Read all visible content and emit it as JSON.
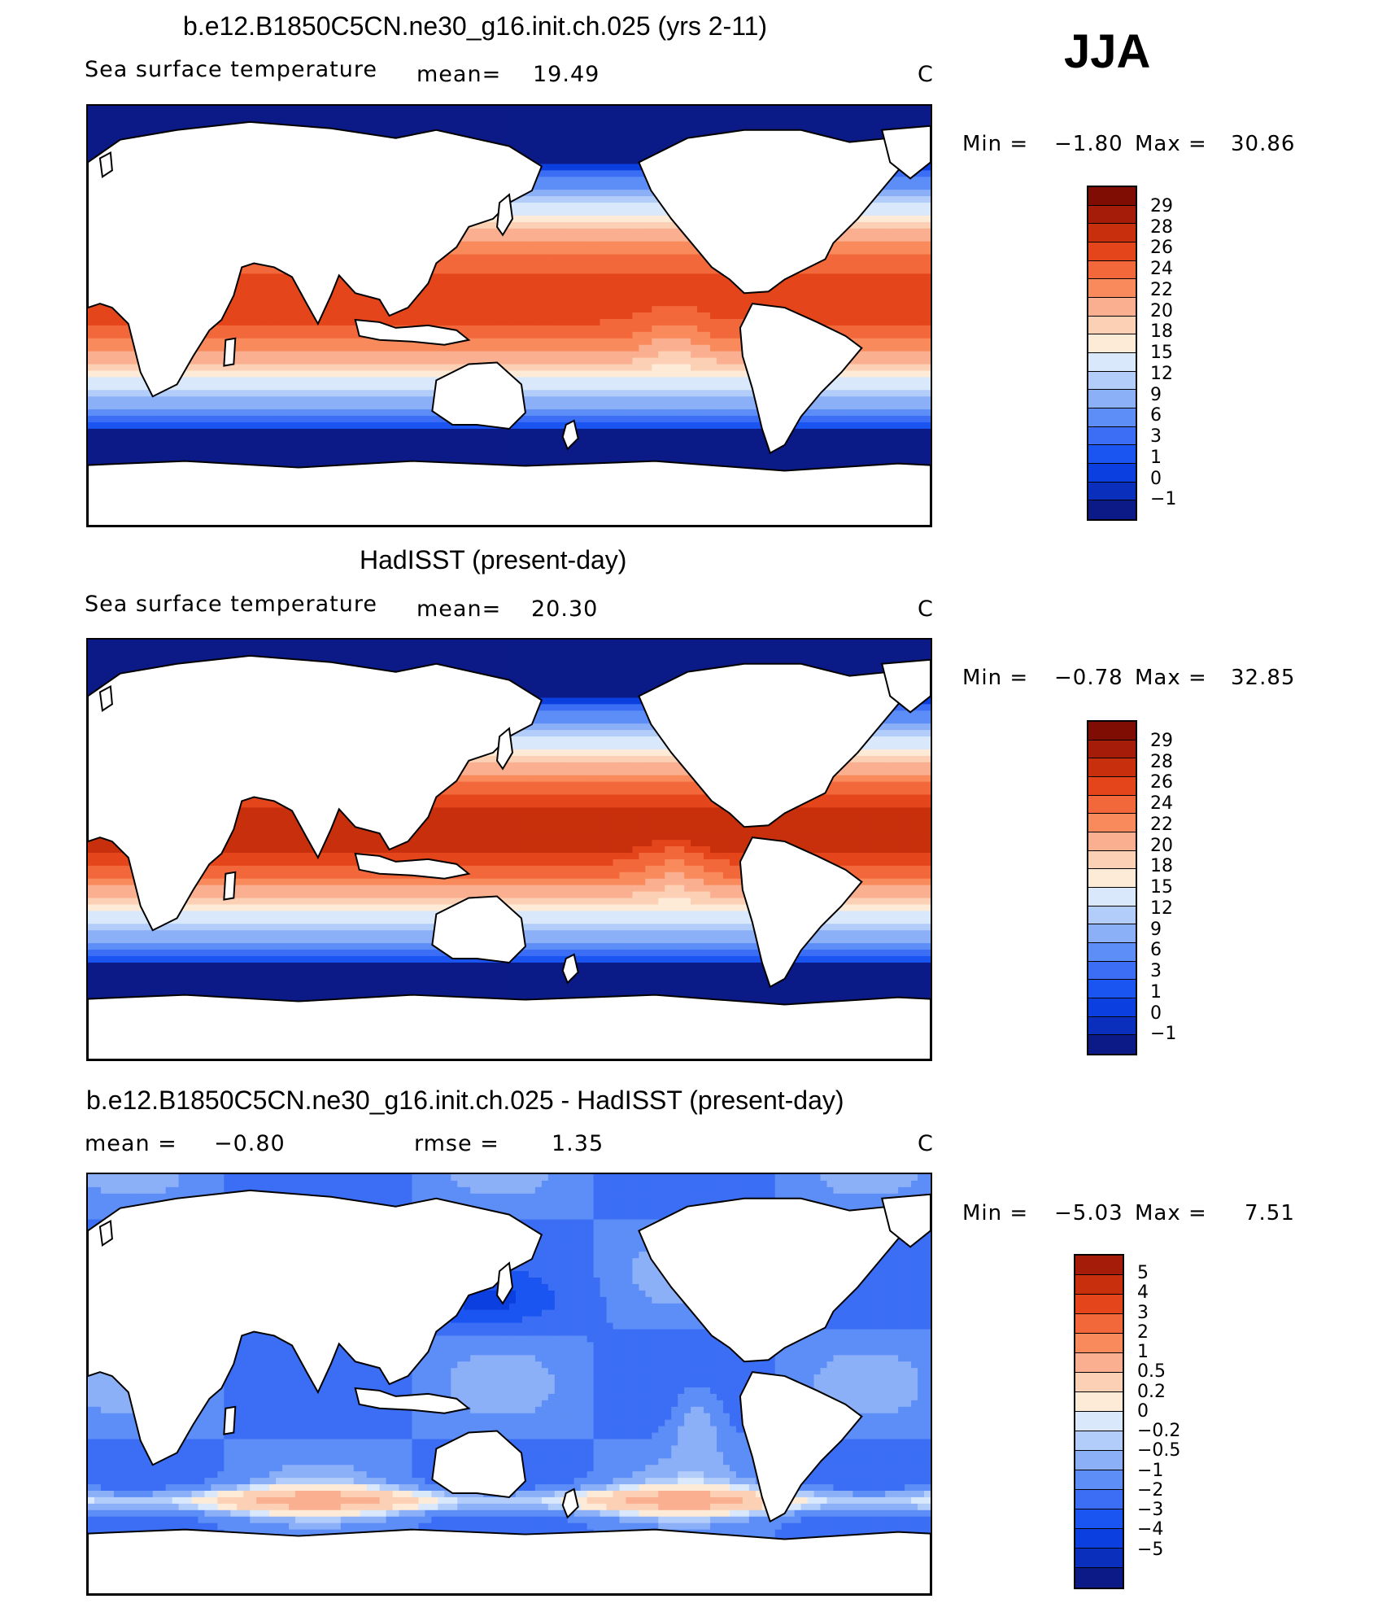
{
  "season": "JJA",
  "colors": {
    "sst": [
      "#0b1a86",
      "#0b2fbd",
      "#0b3fe0",
      "#1a55f2",
      "#3b6ef5",
      "#5d8ef7",
      "#8cb0f8",
      "#b3cdfa",
      "#d9e8fb",
      "#fdebd8",
      "#fcd0b5",
      "#fab090",
      "#f88a5c",
      "#f3683a",
      "#e4451a",
      "#c8300d",
      "#a51d08",
      "#7f0d04"
    ],
    "diff": [
      "#0b1a86",
      "#0b2fbd",
      "#0b3fe0",
      "#1a55f2",
      "#3b6ef5",
      "#5d8ef7",
      "#8cb0f8",
      "#b3cdfa",
      "#d9e8fb",
      "#fdebd8",
      "#fcd0b5",
      "#fab090",
      "#f88a5c",
      "#f3683a",
      "#e4451a",
      "#c8300d",
      "#a51d08"
    ],
    "land": "#ffffff",
    "coast": "#000000"
  },
  "panels": [
    {
      "title": "b.e12.B1850C5CN.ne30_g16.init.ch.025 (yrs 2-11)",
      "variable": "Sea surface temperature",
      "mean_label": "mean=",
      "mean_value": "19.49",
      "units": "C",
      "min_label": "Min =",
      "min_value": "−1.80",
      "max_label": "Max =",
      "max_value": "30.86",
      "levels": [
        "29",
        "28",
        "26",
        "24",
        "22",
        "20",
        "18",
        "15",
        "12",
        "9",
        "6",
        "3",
        "1",
        "0",
        "−1"
      ]
    },
    {
      "title": "HadISST (present-day)",
      "variable": "Sea surface temperature",
      "mean_label": "mean=",
      "mean_value": "20.30",
      "units": "C",
      "min_label": "Min =",
      "min_value": "−0.78",
      "max_label": "Max =",
      "max_value": "32.85",
      "levels": [
        "29",
        "28",
        "26",
        "24",
        "22",
        "20",
        "18",
        "15",
        "12",
        "9",
        "6",
        "3",
        "1",
        "0",
        "−1"
      ]
    },
    {
      "title": "b.e12.B1850C5CN.ne30_g16.init.ch.025 - HadISST (present-day)",
      "mean_label": "mean =",
      "mean_value": "−0.80",
      "rmse_label": "rmse =",
      "rmse_value": "1.35",
      "units": "C",
      "min_label": "Min =",
      "min_value": "−5.03",
      "max_label": "Max =",
      "max_value": "7.51",
      "levels": [
        "5",
        "4",
        "3",
        "2",
        "1",
        "0.5",
        "0.2",
        "0",
        "−0.2",
        "−0.5",
        "−1",
        "−2",
        "−3",
        "−4",
        "−5"
      ]
    }
  ]
}
